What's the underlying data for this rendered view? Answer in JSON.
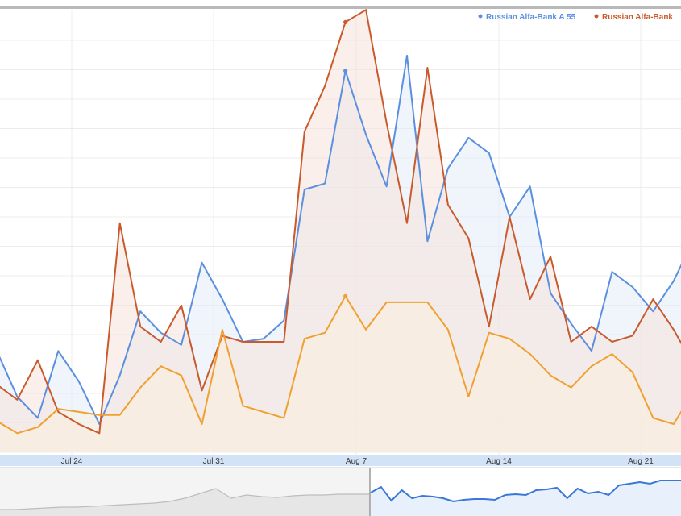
{
  "chart_data": {
    "type": "line",
    "legend_position": "top-right",
    "grid": true,
    "x_labels": [
      "Jul 24",
      "Jul 31",
      "Aug 7",
      "Aug 14",
      "Aug 21"
    ],
    "y_range": [
      0,
      13.5
    ],
    "series": [
      {
        "name": "Russian Alfa-Bank A 55",
        "color": "#5b8fe0",
        "fill": "#e4ecfa",
        "values": [
          3.3,
          1.8,
          1.1,
          3.3,
          2.3,
          0.9,
          2.5,
          4.6,
          3.9,
          3.5,
          6.2,
          5.0,
          3.6,
          3.7,
          4.3,
          8.6,
          8.8,
          12.5,
          10.4,
          8.7,
          13.0,
          6.9,
          9.3,
          10.3,
          9.8,
          7.7,
          8.7,
          5.2,
          4.2,
          3.3,
          5.9,
          5.4,
          4.6,
          5.6,
          7.0
        ]
      },
      {
        "name": "Russian Alfa-Bank",
        "color": "#c85a2c",
        "fill": "#f6e2d8",
        "values": [
          2.2,
          1.7,
          3.0,
          1.3,
          0.9,
          0.6,
          7.5,
          4.1,
          3.6,
          4.8,
          2.0,
          3.8,
          3.6,
          3.6,
          3.6,
          10.5,
          12.0,
          14.1,
          14.5,
          10.8,
          7.5,
          12.6,
          8.1,
          7.0,
          4.1,
          7.7,
          5.0,
          6.4,
          3.6,
          4.1,
          3.6,
          3.8,
          5.0,
          4.0,
          2.8
        ]
      },
      {
        "name": "",
        "color": "#f0a030",
        "fill": "#faeede",
        "values": [
          1.0,
          0.6,
          0.8,
          1.4,
          1.3,
          1.2,
          1.2,
          2.1,
          2.8,
          2.5,
          0.9,
          4.0,
          1.5,
          1.3,
          1.1,
          3.7,
          3.9,
          5.1,
          4.0,
          4.9,
          4.9,
          4.9,
          4.0,
          1.8,
          3.9,
          3.7,
          3.2,
          2.5,
          2.1,
          2.8,
          3.2,
          2.6,
          1.1,
          0.9,
          2.0
        ]
      }
    ],
    "navigator": {
      "inactive_values": [
        4,
        4,
        5,
        6,
        7,
        7,
        8,
        9,
        10,
        11,
        12,
        14,
        18,
        24,
        30,
        18,
        22,
        20,
        19,
        21,
        22,
        22,
        23,
        23,
        23
      ],
      "active_values": [
        25,
        32,
        15,
        28,
        18,
        21,
        20,
        18,
        14,
        16,
        17,
        17,
        16,
        22,
        23,
        22,
        28,
        29,
        31,
        18,
        30,
        24,
        26,
        22,
        34,
        36,
        38,
        36,
        40,
        40,
        40
      ]
    }
  }
}
